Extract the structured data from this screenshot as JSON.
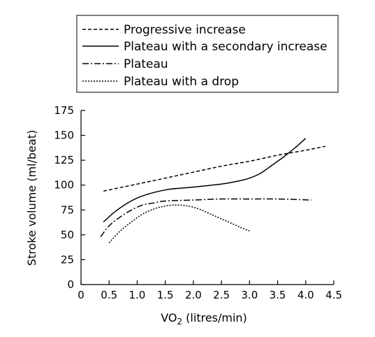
{
  "chart_data": {
    "type": "line",
    "xlabel_main": "VO",
    "xlabel_sub": "2",
    "xlabel_rest": " (litres/min)",
    "ylabel": "Stroke volume (ml/beat)",
    "xlim": [
      0,
      4.5
    ],
    "ylim": [
      0,
      175
    ],
    "x_ticks": [
      0,
      0.5,
      1.0,
      1.5,
      2.0,
      2.5,
      3.0,
      3.5,
      4.0,
      4.5
    ],
    "x_tick_labels": [
      "0",
      "0.5",
      "1.0",
      "1.5",
      "2.0",
      "2.5",
      "3.0",
      "3.5",
      "4.0",
      "4.5"
    ],
    "y_ticks": [
      0,
      25,
      50,
      75,
      100,
      125,
      150,
      175
    ],
    "y_tick_labels": [
      "0",
      "25",
      "50",
      "75",
      "100",
      "125",
      "150",
      "175"
    ],
    "grid": false,
    "legend_position": "top",
    "series": [
      {
        "name": "Progressive increase",
        "dash": "dashed",
        "points": [
          [
            0.4,
            94
          ],
          [
            1.0,
            101
          ],
          [
            1.5,
            107
          ],
          [
            2.0,
            113
          ],
          [
            2.5,
            119
          ],
          [
            3.0,
            124
          ],
          [
            3.5,
            130
          ],
          [
            4.0,
            135
          ],
          [
            4.35,
            139
          ]
        ]
      },
      {
        "name": "Plateau with a secondary increase",
        "dash": "solid",
        "points": [
          [
            0.4,
            63
          ],
          [
            0.6,
            73
          ],
          [
            0.8,
            81
          ],
          [
            1.0,
            87
          ],
          [
            1.2,
            91
          ],
          [
            1.4,
            94
          ],
          [
            1.6,
            96
          ],
          [
            2.0,
            98
          ],
          [
            2.5,
            101
          ],
          [
            2.8,
            104
          ],
          [
            3.0,
            107
          ],
          [
            3.2,
            112
          ],
          [
            3.4,
            120
          ],
          [
            3.6,
            128
          ],
          [
            3.8,
            137
          ],
          [
            4.0,
            147
          ]
        ]
      },
      {
        "name": "Plateau",
        "dash": "dashdot",
        "points": [
          [
            0.35,
            48
          ],
          [
            0.5,
            59
          ],
          [
            0.7,
            68
          ],
          [
            0.9,
            75
          ],
          [
            1.1,
            80
          ],
          [
            1.3,
            82
          ],
          [
            1.5,
            84
          ],
          [
            2.0,
            85
          ],
          [
            2.5,
            86
          ],
          [
            3.0,
            86
          ],
          [
            3.5,
            86
          ],
          [
            4.1,
            85
          ]
        ]
      },
      {
        "name": "Plateau with a drop",
        "dash": "dotted",
        "points": [
          [
            0.5,
            42
          ],
          [
            0.7,
            54
          ],
          [
            0.9,
            63
          ],
          [
            1.1,
            71
          ],
          [
            1.3,
            76
          ],
          [
            1.5,
            79
          ],
          [
            1.7,
            80
          ],
          [
            1.9,
            79
          ],
          [
            2.1,
            76
          ],
          [
            2.3,
            71
          ],
          [
            2.5,
            66
          ],
          [
            2.7,
            61
          ],
          [
            2.9,
            56
          ],
          [
            3.0,
            54
          ]
        ]
      }
    ]
  }
}
